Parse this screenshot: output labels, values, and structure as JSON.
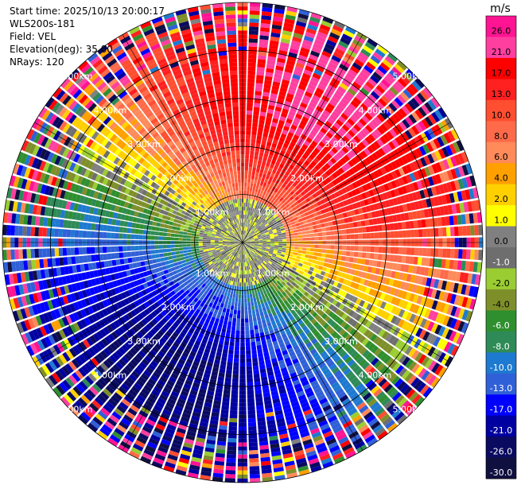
{
  "info": {
    "start_time": "Start time: 2025/10/13 20:00:17",
    "instrument": "WLS200s-181",
    "field": "Field: VEL",
    "elevation": "Elevation(deg): 35.00",
    "nrays": "NRays: 120"
  },
  "chart_data": {
    "type": "heatmap",
    "projection": "polar-ppi",
    "field": "VEL",
    "units": "m/s",
    "n_rays": 120,
    "range_rings_km": [
      1,
      2,
      3,
      4,
      5
    ],
    "ring_labels": [
      "1.00km",
      "2.00km",
      "3.00km",
      "4.00km",
      "5.00km"
    ],
    "max_range_km": 5.0,
    "pattern": {
      "approach_dir_deg": 30,
      "peak_speed": 22,
      "noise_start_km": 3.6
    },
    "colorbar": {
      "label": "m/s",
      "tick_labels": [
        "26.0",
        "21.0",
        "17.0",
        "13.0",
        "10.0",
        "8.0",
        "6.0",
        "4.0",
        "2.0",
        "1.0",
        "0.0",
        "-1.0",
        "-2.0",
        "-4.0",
        "-6.0",
        "-8.0",
        "-10.0",
        "-13.0",
        "-17.0",
        "-21.0",
        "-26.0",
        "-30.0"
      ],
      "bins": [
        {
          "min": 26,
          "max": 30,
          "color": "#ff1493"
        },
        {
          "min": 21,
          "max": 26,
          "color": "#ff3fa0"
        },
        {
          "min": 17,
          "max": 21,
          "color": "#ff0000"
        },
        {
          "min": 13,
          "max": 17,
          "color": "#ff2020"
        },
        {
          "min": 10,
          "max": 13,
          "color": "#ff4e30"
        },
        {
          "min": 8,
          "max": 10,
          "color": "#ff6a4a"
        },
        {
          "min": 6,
          "max": 8,
          "color": "#ff8a5a"
        },
        {
          "min": 4,
          "max": 6,
          "color": "#ffa000"
        },
        {
          "min": 2,
          "max": 4,
          "color": "#ffd000"
        },
        {
          "min": 1,
          "max": 2,
          "color": "#ffff00"
        },
        {
          "min": 0,
          "max": 1,
          "color": "#808080"
        },
        {
          "min": -1,
          "max": 0,
          "color": "#6e6e6e"
        },
        {
          "min": -2,
          "max": -1,
          "color": "#9acd32"
        },
        {
          "min": -4,
          "max": -2,
          "color": "#7e8f2a"
        },
        {
          "min": -6,
          "max": -4,
          "color": "#2f8f2f"
        },
        {
          "min": -8,
          "max": -6,
          "color": "#2e8b57"
        },
        {
          "min": -10,
          "max": -8,
          "color": "#1e7ad0"
        },
        {
          "min": -13,
          "max": -10,
          "color": "#3060d8"
        },
        {
          "min": -17,
          "max": -13,
          "color": "#0000ff"
        },
        {
          "min": -21,
          "max": -17,
          "color": "#0000a0"
        },
        {
          "min": -26,
          "max": -21,
          "color": "#0a0a60"
        },
        {
          "min": -30,
          "max": -26,
          "color": "#101040"
        }
      ]
    }
  }
}
